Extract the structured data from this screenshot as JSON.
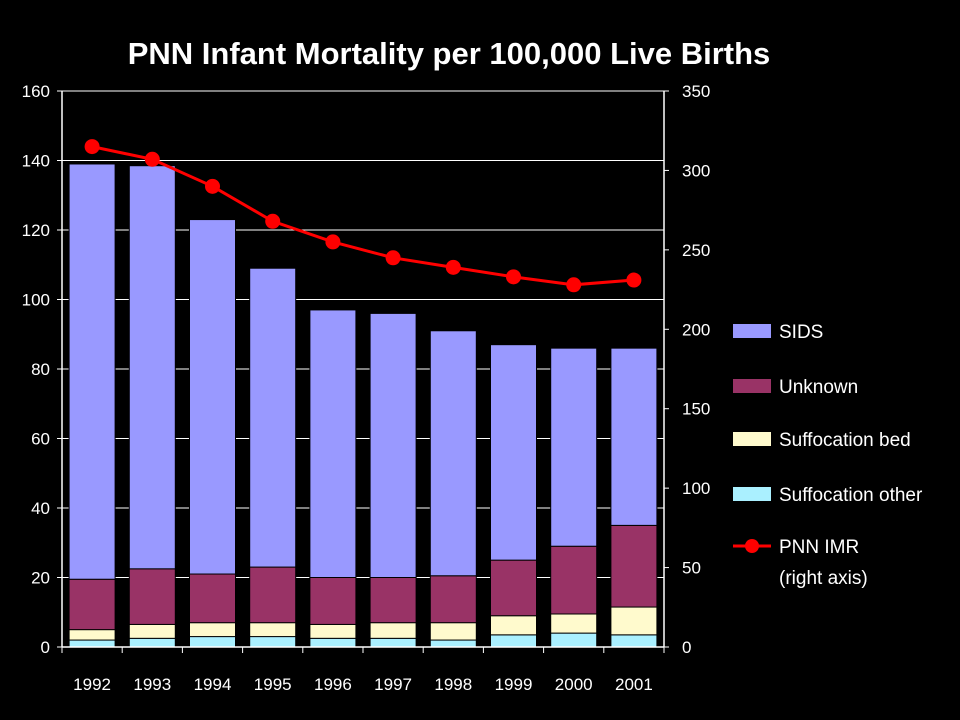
{
  "chart_data": {
    "type": "bar",
    "stacked": true,
    "title": "PNN Infant Mortality per 100,000 Live Births",
    "categories": [
      "1992",
      "1993",
      "1994",
      "1995",
      "1996",
      "1997",
      "1998",
      "1999",
      "2000",
      "2001"
    ],
    "left_axis": {
      "min": 0,
      "max": 160,
      "ticks": [
        "0",
        "20",
        "40",
        "60",
        "80",
        "100",
        "120",
        "140",
        "160"
      ]
    },
    "right_axis": {
      "min": 0,
      "max": 350,
      "ticks": [
        "0",
        "50",
        "100",
        "150",
        "200",
        "250",
        "300",
        "350"
      ]
    },
    "grid": true,
    "legend_position": "right",
    "series": [
      {
        "name": "Suffocation other",
        "color": "#aaf0ff",
        "axis": "left",
        "values": [
          2,
          2.5,
          3,
          3,
          2.5,
          2.5,
          2,
          3.5,
          4,
          3.5
        ]
      },
      {
        "name": "Suffocation bed",
        "color": "#fffacd",
        "axis": "left",
        "values": [
          3,
          4,
          4,
          4,
          4,
          4.5,
          5,
          5.5,
          5.5,
          8
        ]
      },
      {
        "name": "Unknown",
        "color": "#993366",
        "axis": "left",
        "values": [
          14.5,
          16,
          14,
          16,
          13.5,
          13,
          13.5,
          16,
          19.5,
          23.5
        ]
      },
      {
        "name": "SIDS",
        "color": "#9999ff",
        "axis": "left",
        "values": [
          119.5,
          116,
          102,
          86,
          77,
          76,
          70.5,
          62,
          57,
          51
        ]
      },
      {
        "name": "PNN IMR",
        "name_suffix": "(right axis)",
        "type": "line",
        "color": "#ff0000",
        "axis": "right",
        "values": [
          315,
          307,
          290,
          268,
          255,
          245,
          239,
          233,
          228,
          231
        ]
      }
    ]
  }
}
